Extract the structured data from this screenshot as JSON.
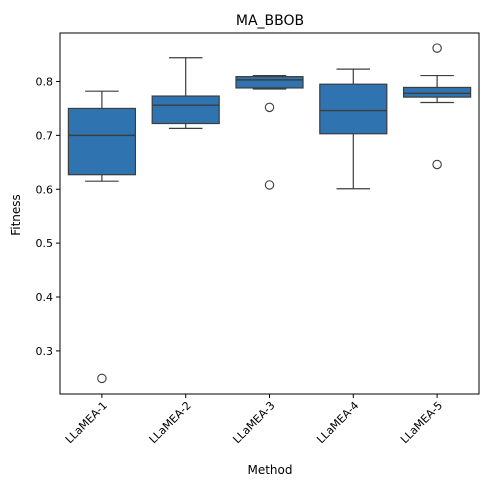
{
  "chart_data": {
    "type": "box",
    "title": "MA_BBOB",
    "xlabel": "Method",
    "ylabel": "Fitness",
    "ylim": [
      0.22,
      0.89
    ],
    "yticks": [
      0.3,
      0.4,
      0.5,
      0.6,
      0.7,
      0.8
    ],
    "grid": false,
    "box_color": "#2f74b0",
    "line_color": "#3d3d3d",
    "categories": [
      "LLaMEA-1",
      "LLaMEA-2",
      "LLaMEA-3",
      "LLaMEA-4",
      "LLaMEA-5"
    ],
    "boxes": [
      {
        "whisker_low": 0.615,
        "q1": 0.627,
        "median": 0.7,
        "q3": 0.75,
        "whisker_high": 0.782,
        "outliers": [
          0.249
        ]
      },
      {
        "whisker_low": 0.713,
        "q1": 0.722,
        "median": 0.756,
        "q3": 0.773,
        "whisker_high": 0.844,
        "outliers": []
      },
      {
        "whisker_low": 0.786,
        "q1": 0.788,
        "median": 0.803,
        "q3": 0.809,
        "whisker_high": 0.811,
        "outliers": [
          0.752,
          0.608
        ]
      },
      {
        "whisker_low": 0.601,
        "q1": 0.703,
        "median": 0.746,
        "q3": 0.795,
        "whisker_high": 0.823,
        "outliers": []
      },
      {
        "whisker_low": 0.761,
        "q1": 0.771,
        "median": 0.778,
        "q3": 0.789,
        "whisker_high": 0.811,
        "outliers": [
          0.862,
          0.646
        ]
      }
    ]
  }
}
